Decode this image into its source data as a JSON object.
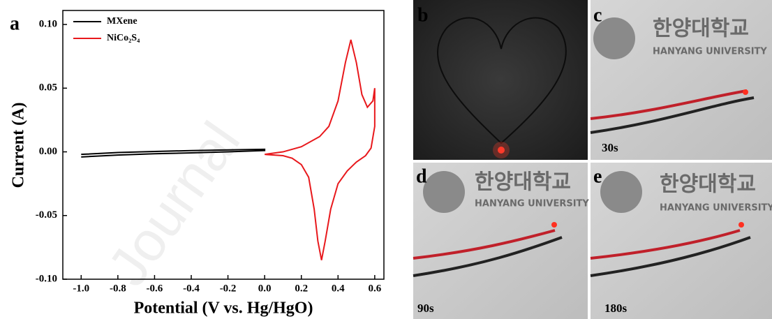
{
  "chart_data": {
    "type": "line",
    "panel_label": "a",
    "x_label": "Potential (V vs. Hg/HgO)",
    "y_label": "Current (A)",
    "xlim": [
      -1.1,
      0.65
    ],
    "ylim": [
      -0.1,
      0.111
    ],
    "xticks": [
      {
        "value": -1.0,
        "label": "-1.0"
      },
      -0.8,
      -0.6,
      -0.4,
      -0.2,
      {
        "value": 0.0,
        "label": "0.0"
      },
      0.2,
      0.4,
      0.6
    ],
    "yticks": [
      {
        "value": 0.1,
        "label": "0.10"
      },
      0.05,
      {
        "value": 0.0,
        "label": "0.00"
      },
      -0.05,
      {
        "value": -0.1,
        "label": "-0.10"
      }
    ],
    "legend": "upper left",
    "series": [
      {
        "name": "MXene",
        "color": "#000000",
        "x": [
          -1.0,
          -0.8,
          -0.6,
          -0.4,
          -0.2,
          0.0,
          0.0,
          -0.2,
          -0.4,
          -0.6,
          -0.8,
          -1.0
        ],
        "values": [
          -0.002,
          -0.0005,
          0.0003,
          0.001,
          0.0015,
          0.002,
          0.001,
          0.0,
          -0.0008,
          -0.0015,
          -0.0025,
          -0.004
        ]
      },
      {
        "name": "NiCo₂S₄",
        "color": "#e8181c",
        "x": [
          0.0,
          0.1,
          0.2,
          0.3,
          0.35,
          0.4,
          0.44,
          0.47,
          0.5,
          0.53,
          0.56,
          0.59,
          0.6,
          0.6,
          0.58,
          0.55,
          0.5,
          0.45,
          0.4,
          0.36,
          0.33,
          0.31,
          0.29,
          0.27,
          0.24,
          0.2,
          0.15,
          0.1,
          0.0
        ],
        "values": [
          -0.002,
          0.0,
          0.004,
          0.012,
          0.02,
          0.04,
          0.07,
          0.088,
          0.07,
          0.045,
          0.035,
          0.04,
          0.05,
          0.02,
          0.003,
          -0.003,
          -0.008,
          -0.015,
          -0.025,
          -0.045,
          -0.07,
          -0.085,
          -0.07,
          -0.045,
          -0.02,
          -0.01,
          -0.005,
          -0.003,
          -0.002
        ]
      }
    ]
  },
  "watermark": "Journal",
  "photos": [
    {
      "label": "b"
    },
    {
      "label": "c",
      "time": "30s",
      "sign": "한양대학교",
      "sign_en": "HANYANG UNIVERSITY"
    },
    {
      "label": "d",
      "time": "90s",
      "sign": "한양대학교",
      "sign_en": "HANYANG UNIVERSITY"
    },
    {
      "label": "e",
      "time": "180s",
      "sign": "한양대학교",
      "sign_en": "HANYANG UNIVERSITY"
    }
  ]
}
